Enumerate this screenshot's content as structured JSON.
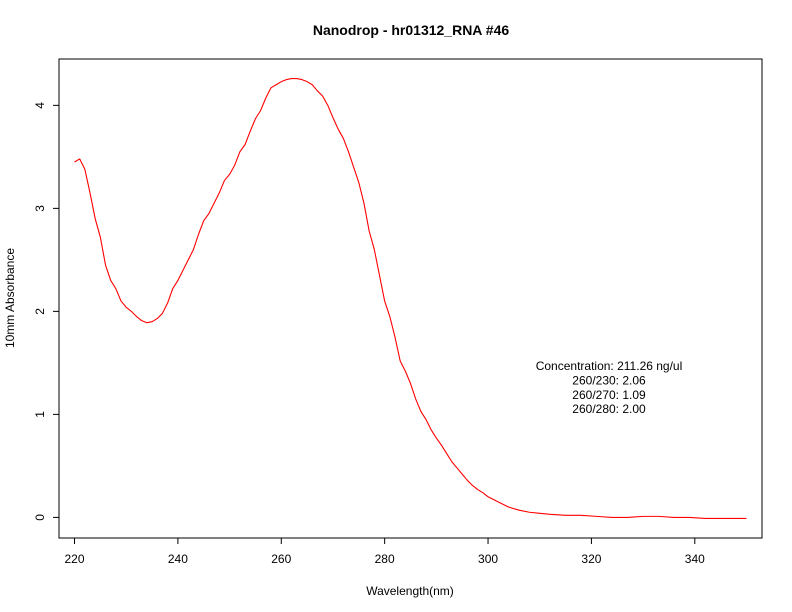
{
  "chart_data": {
    "type": "line",
    "title": "Nanodrop - hr01312_RNA #46",
    "xlabel": "Wavelength(nm)",
    "ylabel": "10mm Absorbance",
    "xlim": [
      217,
      353
    ],
    "ylim": [
      -0.2,
      4.45
    ],
    "x_ticks": [
      220,
      240,
      260,
      280,
      300,
      320,
      340
    ],
    "y_ticks": [
      0,
      1,
      2,
      3,
      4
    ],
    "x_tick_labels": [
      "220",
      "240",
      "260",
      "280",
      "300",
      "320",
      "340"
    ],
    "y_tick_labels": [
      "0",
      "1",
      "2",
      "3",
      "4"
    ],
    "grid": false,
    "series": [
      {
        "color": "#ff0000",
        "x": [
          220,
          221,
          222,
          223,
          224,
          225,
          226,
          227,
          228,
          229,
          230,
          231,
          232,
          233,
          234,
          235,
          236,
          237,
          238,
          239,
          240,
          241,
          242,
          243,
          244,
          245,
          246,
          247,
          248,
          249,
          250,
          251,
          252,
          253,
          254,
          255,
          256,
          257,
          258,
          259,
          260,
          261,
          262,
          263,
          264,
          265,
          266,
          267,
          268,
          269,
          270,
          271,
          272,
          273,
          274,
          275,
          276,
          277,
          278,
          279,
          280,
          281,
          282,
          283,
          284,
          285,
          286,
          287,
          288,
          289,
          290,
          291,
          292,
          293,
          294,
          295,
          296,
          297,
          298,
          299,
          300,
          302,
          304,
          306,
          308,
          310,
          312,
          315,
          318,
          321,
          324,
          327,
          330,
          333,
          336,
          339,
          342,
          345,
          348,
          350
        ],
        "y": [
          3.45,
          3.48,
          3.38,
          3.15,
          2.9,
          2.72,
          2.45,
          2.3,
          2.22,
          2.1,
          2.04,
          2.0,
          1.95,
          1.91,
          1.89,
          1.9,
          1.93,
          1.98,
          2.08,
          2.22,
          2.3,
          2.4,
          2.5,
          2.6,
          2.75,
          2.88,
          2.95,
          3.05,
          3.15,
          3.27,
          3.33,
          3.42,
          3.55,
          3.62,
          3.75,
          3.87,
          3.95,
          4.07,
          4.17,
          4.2,
          4.23,
          4.25,
          4.26,
          4.26,
          4.25,
          4.23,
          4.2,
          4.14,
          4.09,
          4.0,
          3.88,
          3.77,
          3.68,
          3.55,
          3.4,
          3.25,
          3.05,
          2.78,
          2.6,
          2.35,
          2.1,
          1.95,
          1.75,
          1.52,
          1.42,
          1.3,
          1.15,
          1.03,
          0.95,
          0.85,
          0.77,
          0.7,
          0.62,
          0.54,
          0.48,
          0.42,
          0.36,
          0.31,
          0.27,
          0.24,
          0.2,
          0.15,
          0.1,
          0.07,
          0.05,
          0.04,
          0.03,
          0.02,
          0.02,
          0.01,
          0.0,
          0.0,
          0.01,
          0.01,
          0.0,
          0.0,
          -0.01,
          -0.01,
          -0.01,
          -0.01
        ]
      }
    ],
    "annotations": [
      "Concentration: 211.26 ng/ul",
      "260/230: 2.06",
      "260/270: 1.09",
      "260/280: 2.00"
    ]
  }
}
